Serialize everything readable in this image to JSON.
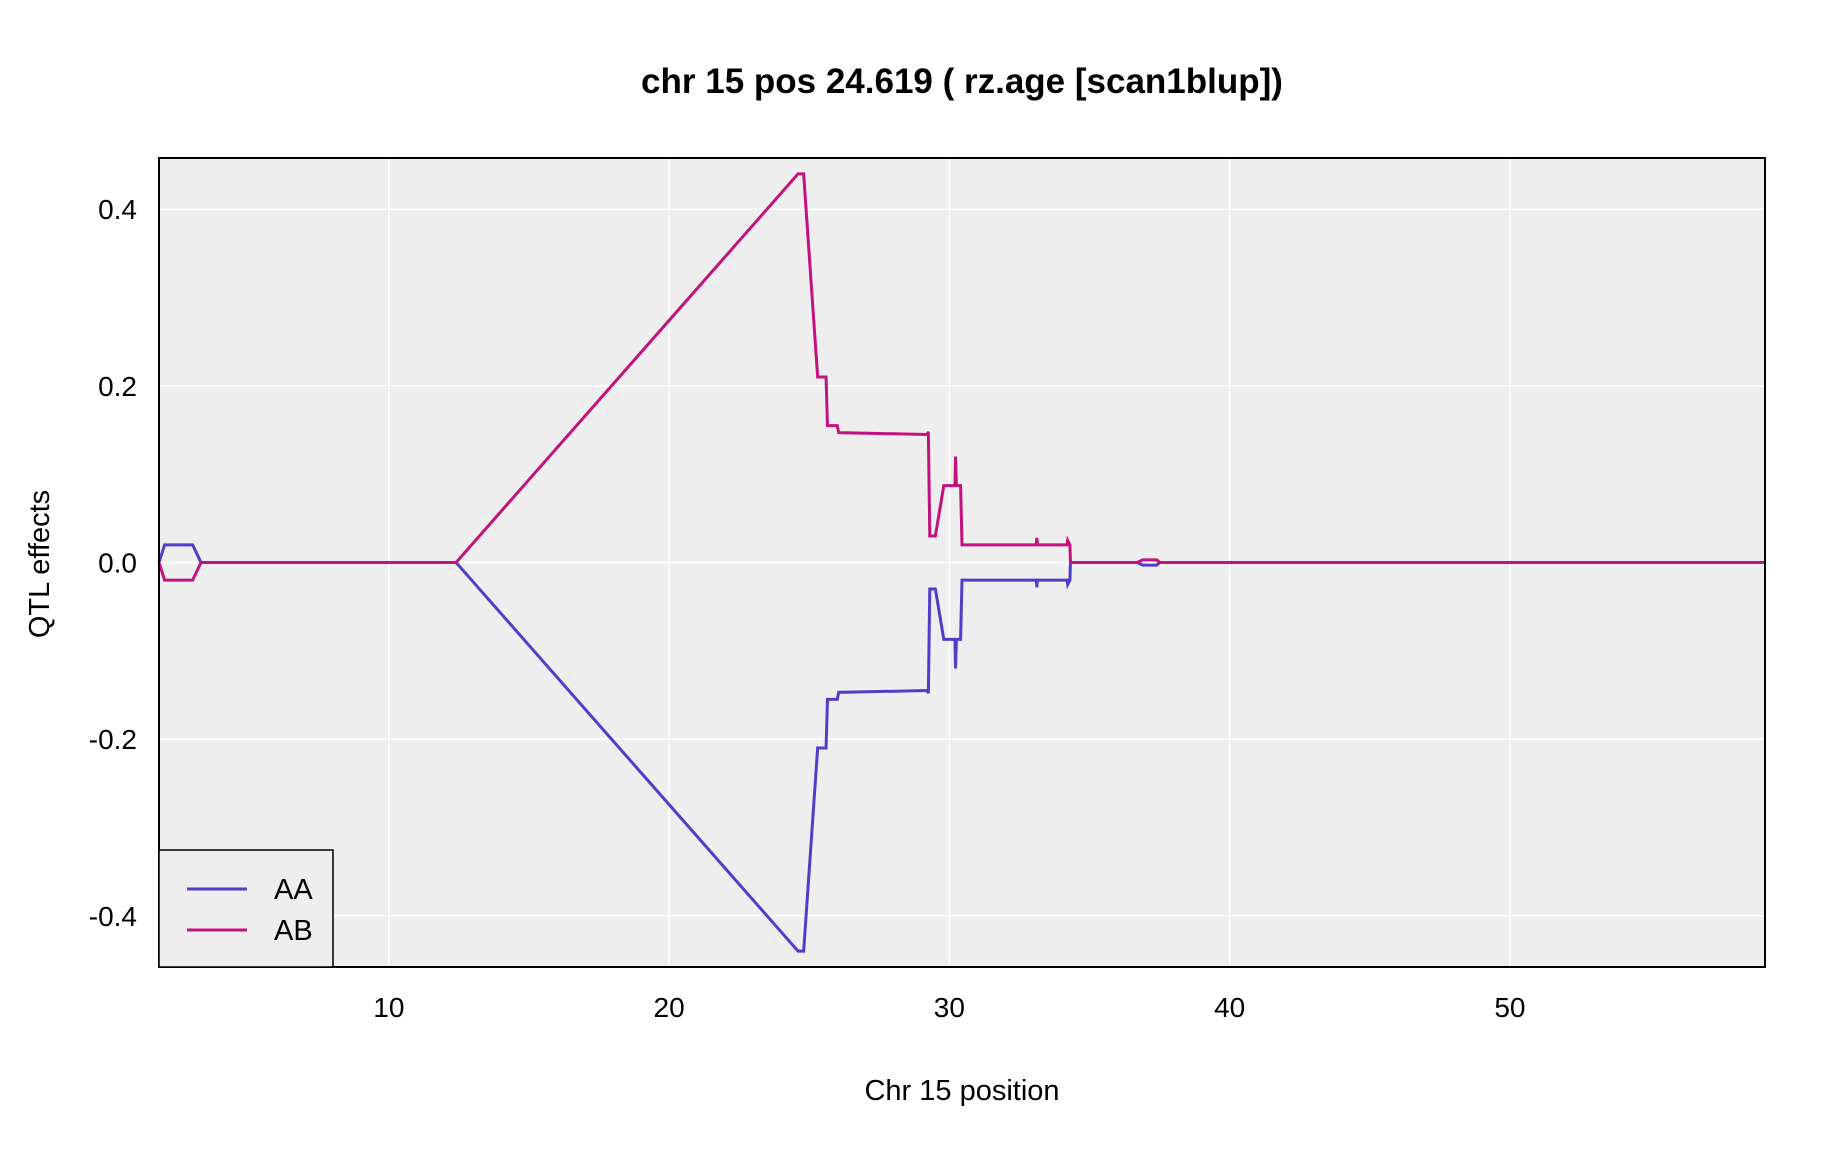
{
  "chart_data": {
    "type": "line",
    "title": "chr 15 pos 24.619 ( rz.age  [scan1blup])",
    "xlabel": "Chr 15 position",
    "ylabel": "QTL effects",
    "xlim": [
      1.8,
      59.1
    ],
    "ylim": [
      -0.458,
      0.458
    ],
    "xticks": [
      10,
      20,
      30,
      40,
      50
    ],
    "yticks": [
      -0.4,
      -0.2,
      0.0,
      0.2,
      0.4
    ],
    "grid": true,
    "legend_position": "bottom-left",
    "background_color": "#eeeeee",
    "grid_color": "#ffffff",
    "series": [
      {
        "name": "AA",
        "color": "#4f3fc8",
        "points": [
          [
            1.8,
            0.0
          ],
          [
            2.0,
            0.02
          ],
          [
            3.0,
            0.02
          ],
          [
            3.3,
            0.0
          ],
          [
            12.4,
            0.0
          ],
          [
            24.6,
            -0.44
          ],
          [
            24.8,
            -0.44
          ],
          [
            25.3,
            -0.21
          ],
          [
            25.6,
            -0.21
          ],
          [
            25.65,
            -0.155
          ],
          [
            26.0,
            -0.155
          ],
          [
            26.05,
            -0.147
          ],
          [
            29.2,
            -0.145
          ],
          [
            29.25,
            -0.148
          ],
          [
            29.3,
            -0.03
          ],
          [
            29.5,
            -0.03
          ],
          [
            29.8,
            -0.087
          ],
          [
            30.2,
            -0.087
          ],
          [
            30.22,
            -0.12
          ],
          [
            30.25,
            -0.087
          ],
          [
            30.4,
            -0.087
          ],
          [
            30.45,
            -0.02
          ],
          [
            33.1,
            -0.02
          ],
          [
            33.12,
            -0.028
          ],
          [
            33.14,
            -0.02
          ],
          [
            34.2,
            -0.02
          ],
          [
            34.22,
            -0.025
          ],
          [
            34.3,
            -0.02
          ],
          [
            34.32,
            0.0
          ],
          [
            36.7,
            0.0
          ],
          [
            36.9,
            -0.003
          ],
          [
            37.4,
            -0.003
          ],
          [
            37.5,
            0.0
          ],
          [
            59.1,
            0.0
          ]
        ]
      },
      {
        "name": "AB",
        "color": "#c2127e",
        "points": [
          [
            1.8,
            0.0
          ],
          [
            2.0,
            -0.02
          ],
          [
            3.0,
            -0.02
          ],
          [
            3.3,
            0.0
          ],
          [
            12.4,
            0.0
          ],
          [
            24.6,
            0.44
          ],
          [
            24.8,
            0.44
          ],
          [
            25.3,
            0.21
          ],
          [
            25.6,
            0.21
          ],
          [
            25.65,
            0.155
          ],
          [
            26.0,
            0.155
          ],
          [
            26.05,
            0.147
          ],
          [
            29.2,
            0.145
          ],
          [
            29.25,
            0.148
          ],
          [
            29.3,
            0.03
          ],
          [
            29.5,
            0.03
          ],
          [
            29.8,
            0.087
          ],
          [
            30.2,
            0.087
          ],
          [
            30.22,
            0.12
          ],
          [
            30.25,
            0.087
          ],
          [
            30.4,
            0.087
          ],
          [
            30.45,
            0.02
          ],
          [
            33.1,
            0.02
          ],
          [
            33.12,
            0.028
          ],
          [
            33.14,
            0.02
          ],
          [
            34.2,
            0.02
          ],
          [
            34.22,
            0.025
          ],
          [
            34.3,
            0.02
          ],
          [
            34.32,
            0.0
          ],
          [
            36.7,
            0.0
          ],
          [
            36.9,
            0.003
          ],
          [
            37.4,
            0.003
          ],
          [
            37.5,
            0.0
          ],
          [
            59.1,
            0.0
          ]
        ]
      }
    ]
  }
}
